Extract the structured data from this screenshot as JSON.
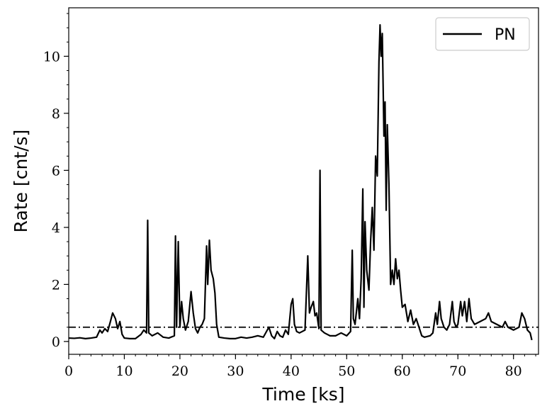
{
  "chart_data": {
    "type": "line",
    "xlabel": "Time [ks]",
    "ylabel": "Rate [cnt/s]",
    "xlim": [
      0,
      84.5
    ],
    "ylim": [
      -0.45,
      11.7
    ],
    "xticks": [
      0,
      10,
      20,
      30,
      40,
      50,
      60,
      70,
      80
    ],
    "yticks": [
      0,
      2,
      4,
      6,
      8,
      10
    ],
    "x_minor_step": 2,
    "y_minor_step": 0.5,
    "grid": false,
    "legend_position": "top-right",
    "threshold": {
      "value": 0.5,
      "style": "dash-dot"
    },
    "series": [
      {
        "name": "PN",
        "color": "#000000",
        "points": [
          [
            0,
            0.12
          ],
          [
            1,
            0.11
          ],
          [
            2,
            0.13
          ],
          [
            3,
            0.1
          ],
          [
            4,
            0.12
          ],
          [
            5,
            0.15
          ],
          [
            5.6,
            0.4
          ],
          [
            6,
            0.3
          ],
          [
            6.5,
            0.45
          ],
          [
            7,
            0.35
          ],
          [
            7.5,
            0.7
          ],
          [
            7.9,
            1.0
          ],
          [
            8.4,
            0.8
          ],
          [
            8.8,
            0.45
          ],
          [
            9.2,
            0.7
          ],
          [
            9.6,
            0.25
          ],
          [
            10,
            0.12
          ],
          [
            11,
            0.1
          ],
          [
            12,
            0.1
          ],
          [
            13,
            0.25
          ],
          [
            13.5,
            0.4
          ],
          [
            14,
            0.3
          ],
          [
            14.2,
            4.25
          ],
          [
            14.4,
            0.3
          ],
          [
            15,
            0.2
          ],
          [
            16,
            0.3
          ],
          [
            17,
            0.15
          ],
          [
            18,
            0.12
          ],
          [
            19,
            0.2
          ],
          [
            19.2,
            3.7
          ],
          [
            19.4,
            0.5
          ],
          [
            19.7,
            3.5
          ],
          [
            20,
            0.5
          ],
          [
            20.3,
            1.4
          ],
          [
            20.6,
            0.8
          ],
          [
            21,
            0.4
          ],
          [
            21.5,
            0.7
          ],
          [
            22,
            1.75
          ],
          [
            22.4,
            1.0
          ],
          [
            22.8,
            0.45
          ],
          [
            23.2,
            0.3
          ],
          [
            23.6,
            0.5
          ],
          [
            24,
            0.6
          ],
          [
            24.4,
            0.8
          ],
          [
            24.8,
            3.35
          ],
          [
            25,
            2.0
          ],
          [
            25.3,
            3.55
          ],
          [
            25.6,
            2.5
          ],
          [
            26,
            2.2
          ],
          [
            26.3,
            1.7
          ],
          [
            26.6,
            0.6
          ],
          [
            27,
            0.15
          ],
          [
            28,
            0.12
          ],
          [
            29,
            0.1
          ],
          [
            30,
            0.1
          ],
          [
            31,
            0.15
          ],
          [
            32,
            0.12
          ],
          [
            33,
            0.15
          ],
          [
            34,
            0.2
          ],
          [
            35,
            0.15
          ],
          [
            36,
            0.5
          ],
          [
            36.5,
            0.2
          ],
          [
            37,
            0.1
          ],
          [
            37.5,
            0.35
          ],
          [
            38,
            0.2
          ],
          [
            38.5,
            0.15
          ],
          [
            39,
            0.4
          ],
          [
            39.5,
            0.25
          ],
          [
            40,
            1.3
          ],
          [
            40.3,
            1.5
          ],
          [
            40.6,
            0.6
          ],
          [
            41,
            0.35
          ],
          [
            41.5,
            0.3
          ],
          [
            42,
            0.35
          ],
          [
            42.5,
            0.4
          ],
          [
            43,
            3.0
          ],
          [
            43.3,
            1.0
          ],
          [
            43.6,
            1.2
          ],
          [
            44,
            1.4
          ],
          [
            44.3,
            0.9
          ],
          [
            44.6,
            1.0
          ],
          [
            45,
            0.45
          ],
          [
            45.2,
            6.0
          ],
          [
            45.4,
            0.4
          ],
          [
            46,
            0.3
          ],
          [
            47,
            0.2
          ],
          [
            48,
            0.2
          ],
          [
            49,
            0.3
          ],
          [
            50,
            0.2
          ],
          [
            50.7,
            0.35
          ],
          [
            51,
            3.2
          ],
          [
            51.2,
            0.8
          ],
          [
            51.5,
            0.6
          ],
          [
            52,
            1.5
          ],
          [
            52.3,
            0.8
          ],
          [
            52.6,
            2.2
          ],
          [
            52.9,
            5.35
          ],
          [
            53.1,
            1.2
          ],
          [
            53.3,
            4.2
          ],
          [
            53.6,
            2.5
          ],
          [
            54,
            1.8
          ],
          [
            54.3,
            3.5
          ],
          [
            54.6,
            4.7
          ],
          [
            54.9,
            3.2
          ],
          [
            55.2,
            6.5
          ],
          [
            55.5,
            5.8
          ],
          [
            55.8,
            9.8
          ],
          [
            56,
            11.1
          ],
          [
            56.2,
            10.0
          ],
          [
            56.4,
            10.8
          ],
          [
            56.7,
            7.2
          ],
          [
            56.9,
            8.4
          ],
          [
            57.1,
            4.6
          ],
          [
            57.3,
            7.6
          ],
          [
            57.6,
            5.5
          ],
          [
            57.9,
            2.0
          ],
          [
            58.2,
            2.5
          ],
          [
            58.5,
            2.0
          ],
          [
            58.8,
            2.9
          ],
          [
            59.1,
            2.2
          ],
          [
            59.4,
            2.5
          ],
          [
            59.7,
            1.8
          ],
          [
            60,
            1.2
          ],
          [
            60.5,
            1.3
          ],
          [
            61,
            0.7
          ],
          [
            61.5,
            1.1
          ],
          [
            62,
            0.6
          ],
          [
            62.5,
            0.8
          ],
          [
            63,
            0.5
          ],
          [
            63.5,
            0.2
          ],
          [
            64,
            0.15
          ],
          [
            65,
            0.2
          ],
          [
            65.5,
            0.3
          ],
          [
            66,
            1.0
          ],
          [
            66.3,
            0.6
          ],
          [
            66.7,
            1.4
          ],
          [
            67,
            0.8
          ],
          [
            67.5,
            0.5
          ],
          [
            68,
            0.4
          ],
          [
            68.5,
            0.6
          ],
          [
            69,
            1.4
          ],
          [
            69.3,
            0.7
          ],
          [
            69.7,
            0.5
          ],
          [
            70,
            0.6
          ],
          [
            70.5,
            1.4
          ],
          [
            70.8,
            0.9
          ],
          [
            71.2,
            1.4
          ],
          [
            71.6,
            0.7
          ],
          [
            72,
            1.5
          ],
          [
            72.4,
            0.8
          ],
          [
            73,
            0.6
          ],
          [
            74,
            0.7
          ],
          [
            75,
            0.8
          ],
          [
            75.5,
            1.0
          ],
          [
            76,
            0.7
          ],
          [
            77,
            0.6
          ],
          [
            78,
            0.5
          ],
          [
            78.5,
            0.7
          ],
          [
            79,
            0.5
          ],
          [
            80,
            0.4
          ],
          [
            81,
            0.5
          ],
          [
            81.5,
            1.0
          ],
          [
            82,
            0.8
          ],
          [
            82.5,
            0.4
          ],
          [
            83,
            0.3
          ],
          [
            83.3,
            0.05
          ]
        ]
      }
    ]
  }
}
